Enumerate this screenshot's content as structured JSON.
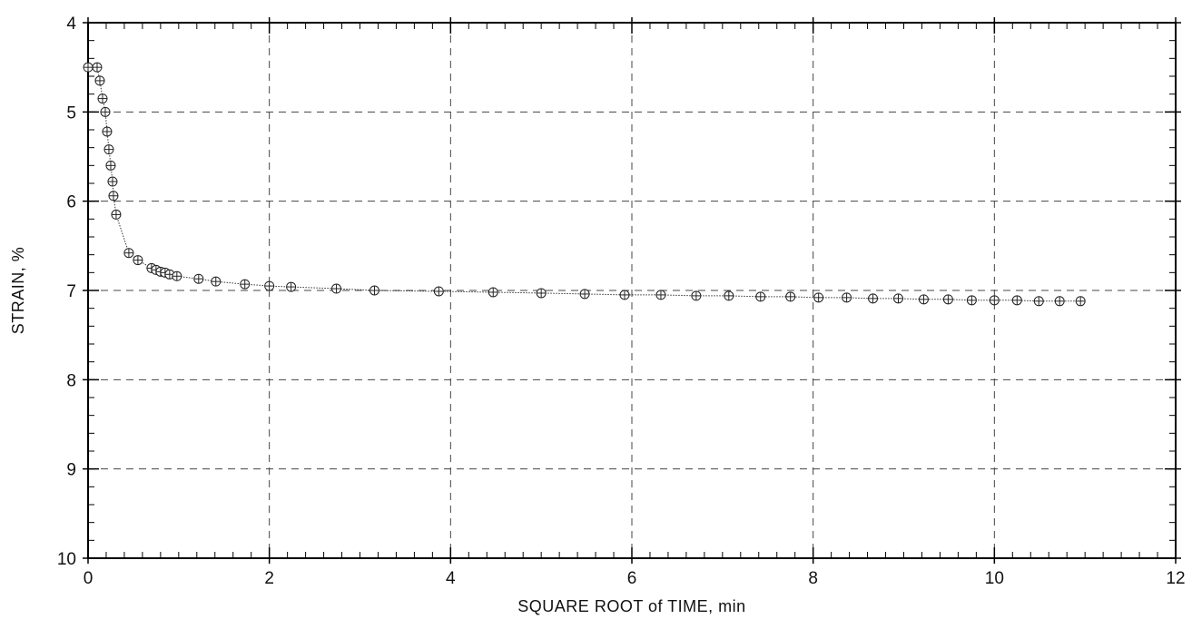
{
  "chart_data": {
    "type": "line",
    "title": "",
    "xlabel": "SQUARE ROOT of TIME, min",
    "ylabel": "STRAIN, %",
    "xlim": [
      0,
      12
    ],
    "ylim": [
      4,
      10
    ],
    "y_inverted": true,
    "x_ticks": [
      "0",
      "2",
      "4",
      "6",
      "8",
      "10",
      "12"
    ],
    "y_ticks": [
      "4",
      "5",
      "6",
      "7",
      "8",
      "9",
      "10"
    ],
    "grid": "dashed",
    "marker": "circle-with-cross",
    "colors": {
      "line": "#333333",
      "marker": "#222222",
      "grid": "#444444",
      "axis": "#000000"
    },
    "series": [
      {
        "points": [
          [
            0.0,
            4.5
          ],
          [
            0.1,
            4.5
          ],
          [
            0.13,
            4.65
          ],
          [
            0.16,
            4.85
          ],
          [
            0.19,
            5.0
          ],
          [
            0.21,
            5.22
          ],
          [
            0.23,
            5.42
          ],
          [
            0.25,
            5.6
          ],
          [
            0.27,
            5.78
          ],
          [
            0.28,
            5.94
          ],
          [
            0.31,
            6.15
          ],
          [
            0.45,
            6.58
          ],
          [
            0.55,
            6.66
          ],
          [
            0.7,
            6.75
          ],
          [
            0.75,
            6.77
          ],
          [
            0.8,
            6.79
          ],
          [
            0.85,
            6.8
          ],
          [
            0.9,
            6.82
          ],
          [
            0.98,
            6.84
          ],
          [
            1.22,
            6.87
          ],
          [
            1.41,
            6.9
          ],
          [
            1.73,
            6.93
          ],
          [
            2.0,
            6.95
          ],
          [
            2.24,
            6.96
          ],
          [
            2.74,
            6.98
          ],
          [
            3.16,
            7.0
          ],
          [
            3.87,
            7.01
          ],
          [
            4.47,
            7.02
          ],
          [
            5.0,
            7.03
          ],
          [
            5.48,
            7.04
          ],
          [
            5.92,
            7.05
          ],
          [
            6.32,
            7.05
          ],
          [
            6.71,
            7.06
          ],
          [
            7.07,
            7.06
          ],
          [
            7.42,
            7.07
          ],
          [
            7.75,
            7.07
          ],
          [
            8.06,
            7.08
          ],
          [
            8.37,
            7.08
          ],
          [
            8.66,
            7.09
          ],
          [
            8.94,
            7.09
          ],
          [
            9.22,
            7.1
          ],
          [
            9.49,
            7.1
          ],
          [
            9.75,
            7.11
          ],
          [
            10.0,
            7.11
          ],
          [
            10.25,
            7.11
          ],
          [
            10.49,
            7.12
          ],
          [
            10.72,
            7.12
          ],
          [
            10.95,
            7.12
          ]
        ]
      }
    ]
  }
}
